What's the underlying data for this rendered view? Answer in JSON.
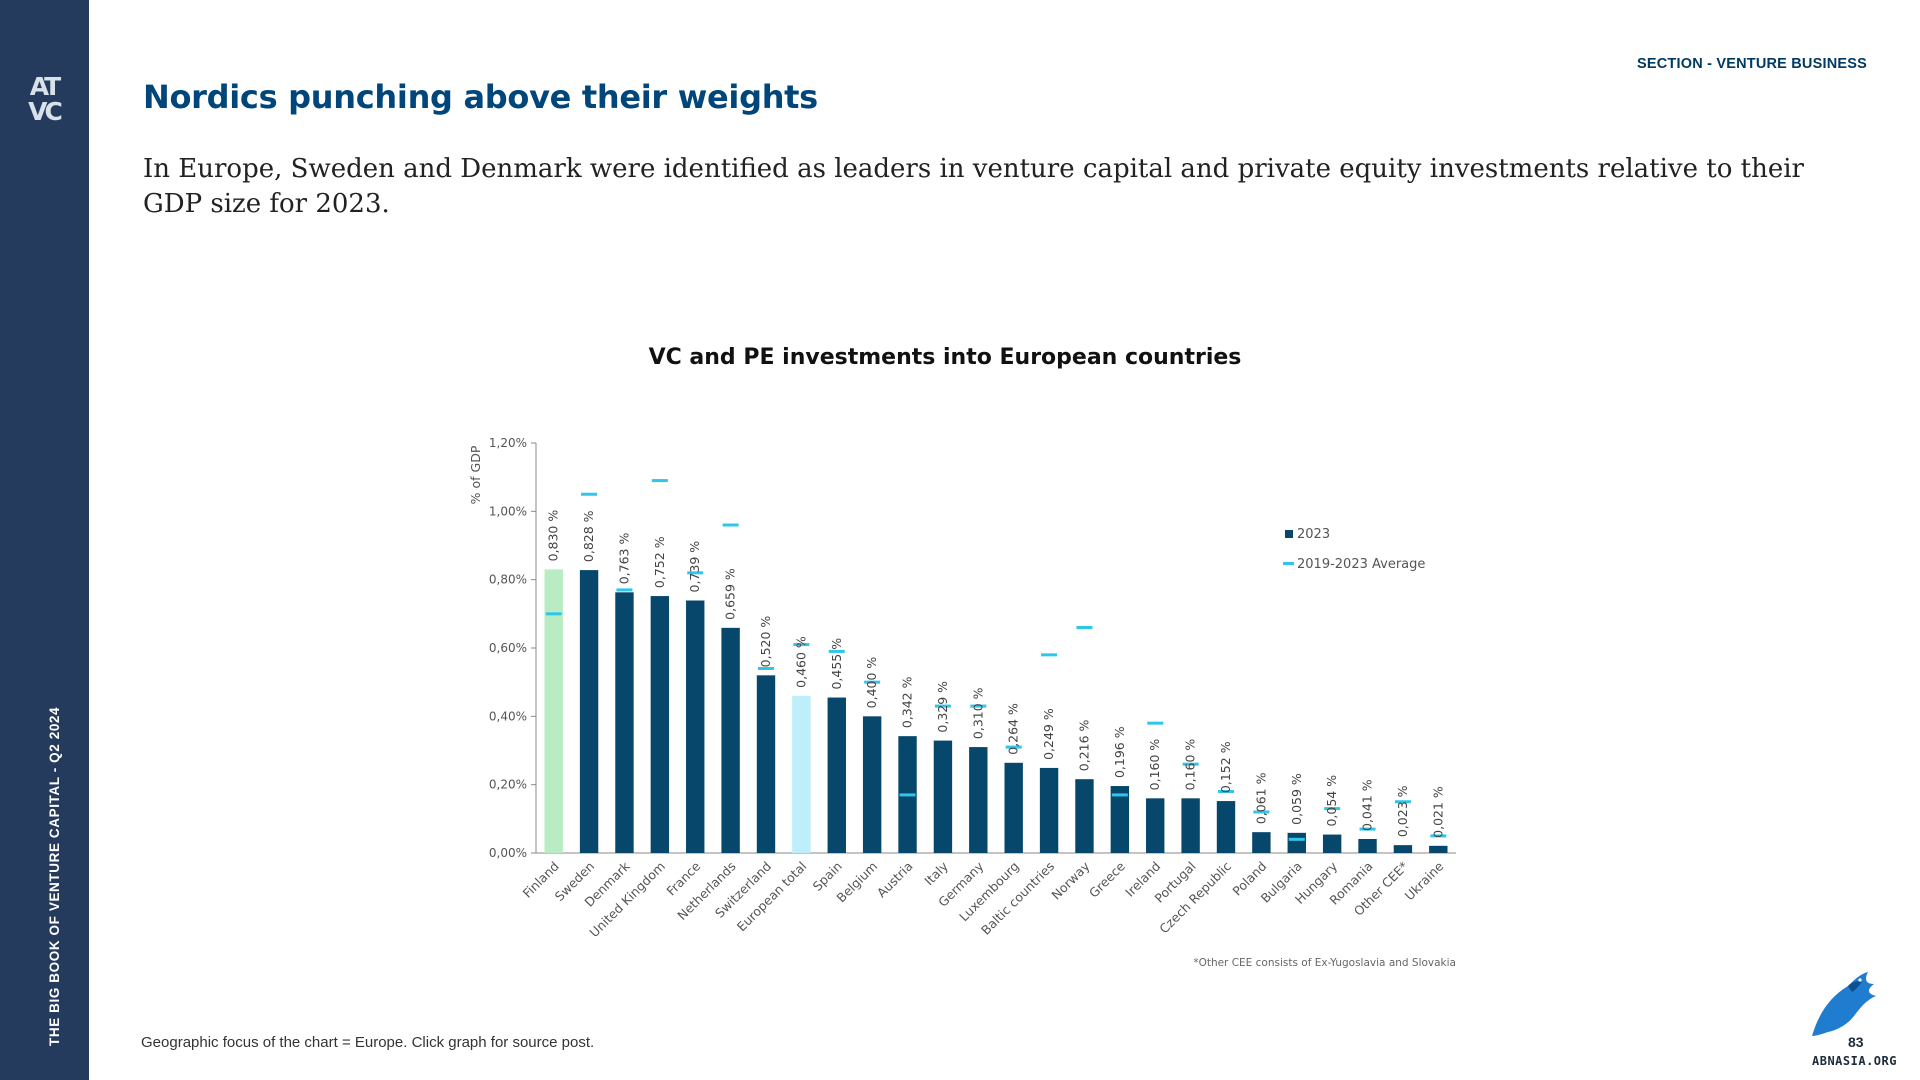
{
  "sidebar": {
    "logo_top": "AT",
    "logo_bottom": "VC",
    "book_label": "THE BIG BOOK OF VENTURE CAPITAL - Q2 2024"
  },
  "header": {
    "section": "SECTION - VENTURE BUSINESS",
    "title": "Nordics punching above their weights"
  },
  "intro": "In Europe, Sweden and Denmark were identified as leaders in venture capital and private equity investments relative to their GDP size for 2023.",
  "footnote": "Geographic focus of the chart = Europe. Click graph for source post.",
  "watermark": {
    "text": "ABNASIA.ORG",
    "page_number": "83"
  },
  "colors": {
    "bar": "#07476b",
    "bar_finland": "#b9ecc3",
    "bar_european_total": "#bdeefa",
    "average_marker": "#2ec7ea",
    "title": "#00467a",
    "sidebar": "#243b5e"
  },
  "chart_data": {
    "type": "bar",
    "title": "VC and PE investments into European countries",
    "xlabel": "",
    "ylabel": "% of GDP",
    "ylim": [
      0,
      1.2
    ],
    "yticks": [
      "0,00%",
      "0,20%",
      "0,40%",
      "0,60%",
      "0,80%",
      "1,00%",
      "1,20%"
    ],
    "yticks_values": [
      0,
      0.2,
      0.4,
      0.6,
      0.8,
      1.0,
      1.2
    ],
    "grid": false,
    "legend_position": "right",
    "categories": [
      "Finland",
      "Sweden",
      "Denmark",
      "United Kingdom",
      "France",
      "Netherlands",
      "Switzerland",
      "European total",
      "Spain",
      "Belgium",
      "Austria",
      "Italy",
      "Germany",
      "Luxembourg",
      "Baltic countries",
      "Norway",
      "Greece",
      "Ireland",
      "Portugal",
      "Czech Republic",
      "Poland",
      "Bulgaria",
      "Hungary",
      "Romania",
      "Other CEE*",
      "Ukraine"
    ],
    "series": [
      {
        "name": "2023",
        "values": [
          0.83,
          0.828,
          0.763,
          0.752,
          0.739,
          0.659,
          0.52,
          0.46,
          0.455,
          0.4,
          0.342,
          0.329,
          0.31,
          0.264,
          0.249,
          0.216,
          0.196,
          0.16,
          0.16,
          0.152,
          0.061,
          0.059,
          0.054,
          0.041,
          0.023,
          0.021
        ],
        "labels": [
          "0,830 %",
          "0,828 %",
          "0,763 %",
          "0,752 %",
          "0,739 %",
          "0,659 %",
          "0,520 %",
          "0,460 %",
          "0,455 %",
          "0,400 %",
          "0,342 %",
          "0,329 %",
          "0,310 %",
          "0,264 %",
          "0,249 %",
          "0,216 %",
          "0,196 %",
          "0,160 %",
          "0,160 %",
          "0,152 %",
          "0,061 %",
          "0,059 %",
          "0,054 %",
          "0,041 %",
          "0,023 %",
          "0,021 %"
        ]
      },
      {
        "name": "2019-2023 Average",
        "values": [
          0.7,
          1.05,
          0.77,
          1.09,
          0.82,
          0.96,
          0.54,
          0.61,
          0.59,
          0.5,
          0.17,
          0.43,
          0.43,
          0.31,
          0.58,
          0.66,
          0.17,
          0.38,
          0.26,
          0.18,
          0.12,
          0.04,
          0.13,
          0.07,
          0.15,
          0.05
        ]
      }
    ],
    "annotation": "*Other CEE consists of Ex-Yugoslavia and Slovakia"
  }
}
